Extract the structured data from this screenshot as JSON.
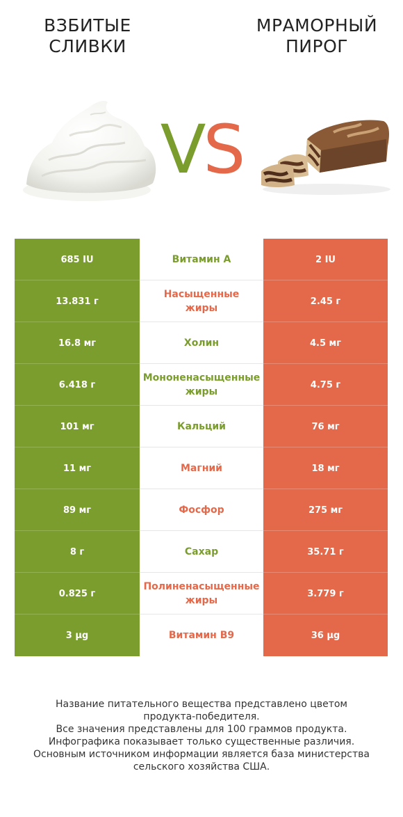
{
  "header": {
    "left_title": "ВЗБИТЫЕ\nСЛИВКИ",
    "right_title": "МРАМОРНЫЙ\nПИРОГ",
    "vs_v": "V",
    "vs_s": "S"
  },
  "colors": {
    "left_accent": "#7a9d2e",
    "right_accent": "#e4694b"
  },
  "rows": [
    {
      "left": "685 IU",
      "name": "Витамин А",
      "right": "2 IU",
      "winner": "left"
    },
    {
      "left": "13.831 г",
      "name": "Насыщенные\nжиры",
      "right": "2.45 г",
      "winner": "right"
    },
    {
      "left": "16.8 мг",
      "name": "Холин",
      "right": "4.5 мг",
      "winner": "left"
    },
    {
      "left": "6.418 г",
      "name": "Мононенасыщенные\nжиры",
      "right": "4.75 г",
      "winner": "left"
    },
    {
      "left": "101 мг",
      "name": "Кальций",
      "right": "76 мг",
      "winner": "left"
    },
    {
      "left": "11 мг",
      "name": "Магний",
      "right": "18 мг",
      "winner": "right"
    },
    {
      "left": "89 мг",
      "name": "Фосфор",
      "right": "275 мг",
      "winner": "right"
    },
    {
      "left": "8 г",
      "name": "Сахар",
      "right": "35.71 г",
      "winner": "left"
    },
    {
      "left": "0.825 г",
      "name": "Полиненасыщенные\nжиры",
      "right": "3.779 г",
      "winner": "right"
    },
    {
      "left": "3 µg",
      "name": "Витамин B9",
      "right": "36 µg",
      "winner": "right"
    }
  ],
  "footer": {
    "line1": "Название питательного вещества представлено цветом",
    "line2": "продукта-победителя.",
    "line3": "Все значения представлены для 100 граммов продукта.",
    "line4": "Инфографика показывает только существенные различия.",
    "line5": "Основным источником информации является база министерства",
    "line6": "сельского хозяйства США."
  }
}
